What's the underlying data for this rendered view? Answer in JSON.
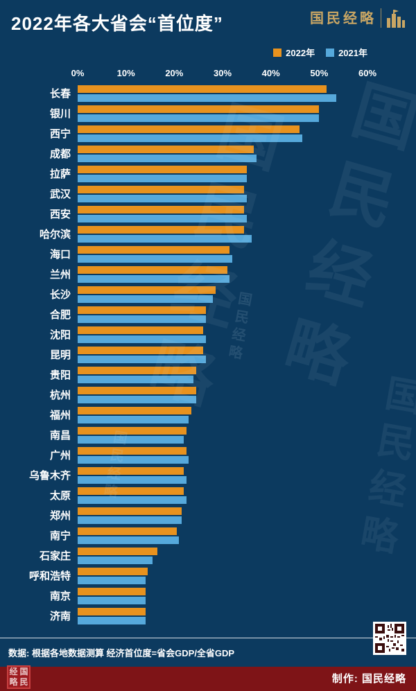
{
  "header": {
    "title": "2022年各大省会“首位度”",
    "brand": "国民经略"
  },
  "watermark": "国民经略",
  "chart_data": {
    "type": "bar",
    "orientation": "horizontal",
    "title": "2022年各大省会“首位度”",
    "xlabel": "",
    "ylabel": "",
    "xlim": [
      0,
      60
    ],
    "x_ticks": [
      "0%",
      "10%",
      "20%",
      "30%",
      "40%",
      "50%",
      "60%"
    ],
    "grid": false,
    "legend_position": "top-right",
    "categories": [
      "长春",
      "银川",
      "西宁",
      "成都",
      "拉萨",
      "武汉",
      "西安",
      "哈尔滨",
      "海口",
      "兰州",
      "长沙",
      "合肥",
      "沈阳",
      "昆明",
      "贵阳",
      "杭州",
      "福州",
      "南昌",
      "广州",
      "乌鲁木齐",
      "太原",
      "郑州",
      "南宁",
      "石家庄",
      "呼和浩特",
      "南京",
      "济南"
    ],
    "series": [
      {
        "name": "2022年",
        "color": "#E8921E",
        "values": [
          51.5,
          50,
          46,
          36.5,
          35,
          34.5,
          34.5,
          34.5,
          31.5,
          31,
          28.5,
          26.5,
          26,
          26,
          24.5,
          24.5,
          23.5,
          22.5,
          22.5,
          22,
          22,
          21.5,
          20.5,
          16.5,
          14.5,
          14,
          14
        ]
      },
      {
        "name": "2021年",
        "color": "#56A9DC",
        "values": [
          53.5,
          50,
          46.5,
          37,
          35,
          35,
          35,
          36,
          32,
          31.5,
          28,
          26.5,
          26.5,
          26.5,
          24,
          24.5,
          23,
          22,
          23,
          22.5,
          22.5,
          21.5,
          21,
          15.5,
          14,
          14,
          14
        ]
      }
    ]
  },
  "footnote": "数据: 根据各地数据测算 经济首位度=省会GDP/全省GDP",
  "footer": {
    "credit": "制作: 国民经略",
    "seal_text": "经国略民"
  },
  "colors": {
    "background": "#0C3A5F",
    "bar_2022": "#E8921E",
    "bar_2021": "#56A9DC",
    "footer_bar": "#7E1417",
    "brand_gold": "#C9A664"
  }
}
